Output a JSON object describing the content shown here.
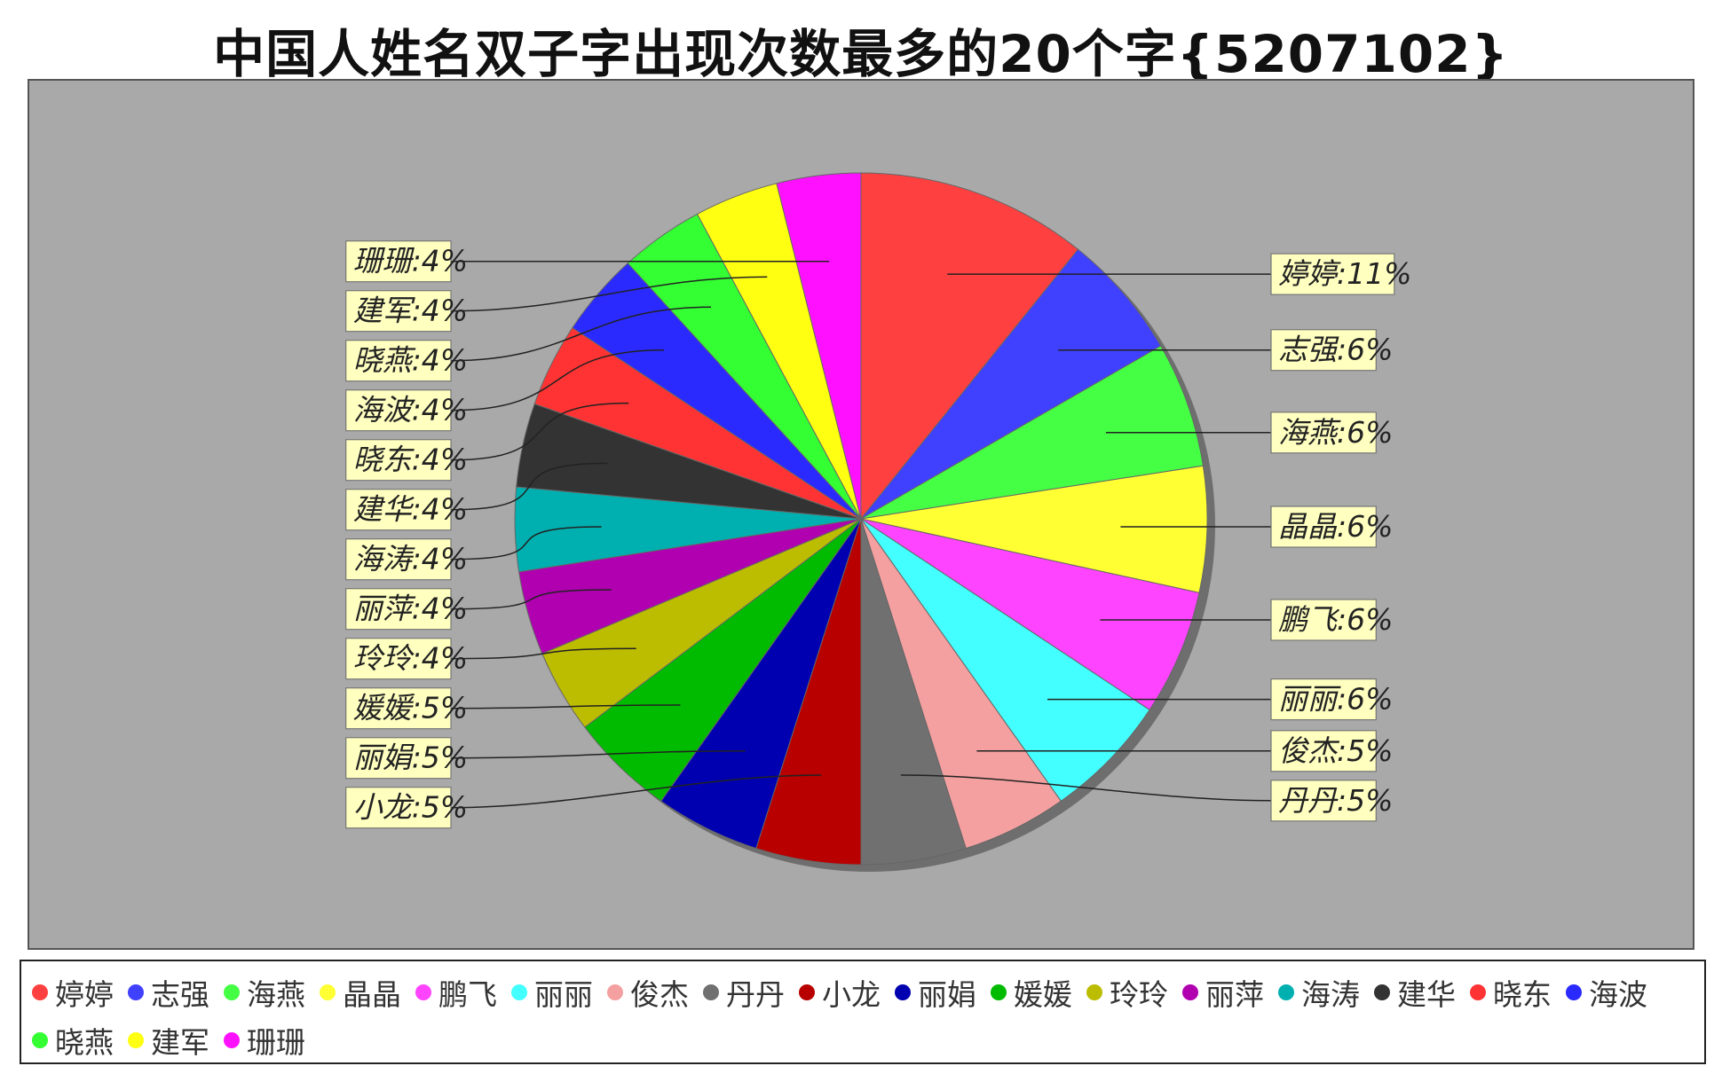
{
  "colors": {
    "plot_background": "#a9a9a9",
    "label_background": "#ffffc0",
    "leader_line": "#222222"
  },
  "chart_data": {
    "type": "pie",
    "title": "中国人姓名双子字出现次数最多的20个字{5207102}",
    "legend_position": "bottom",
    "slices": [
      {
        "name": "婷婷",
        "label": "婷婷:11%",
        "value": 11,
        "color": "#ff4040"
      },
      {
        "name": "志强",
        "label": "志强:6%",
        "value": 6,
        "color": "#4040ff"
      },
      {
        "name": "海燕",
        "label": "海燕:6%",
        "value": 6,
        "color": "#44ff44"
      },
      {
        "name": "晶晶",
        "label": "晶晶:6%",
        "value": 6,
        "color": "#ffff33"
      },
      {
        "name": "鹏飞",
        "label": "鹏飞:6%",
        "value": 6,
        "color": "#ff44ff"
      },
      {
        "name": "丽丽",
        "label": "丽丽:6%",
        "value": 6,
        "color": "#44ffff"
      },
      {
        "name": "俊杰",
        "label": "俊杰:5%",
        "value": 5,
        "color": "#f4a0a0"
      },
      {
        "name": "丹丹",
        "label": "丹丹:5%",
        "value": 5,
        "color": "#707070"
      },
      {
        "name": "小龙",
        "label": "小龙:5%",
        "value": 5,
        "color": "#b80000"
      },
      {
        "name": "丽娟",
        "label": "丽娟:5%",
        "value": 5,
        "color": "#0000b0"
      },
      {
        "name": "媛媛",
        "label": "媛媛:5%",
        "value": 5,
        "color": "#00bb00"
      },
      {
        "name": "玲玲",
        "label": "玲玲:4%",
        "value": 4,
        "color": "#bcbc00"
      },
      {
        "name": "丽萍",
        "label": "丽萍:4%",
        "value": 4,
        "color": "#b000b0"
      },
      {
        "name": "海涛",
        "label": "海涛:4%",
        "value": 4,
        "color": "#00b0b0"
      },
      {
        "name": "建华",
        "label": "建华:4%",
        "value": 4,
        "color": "#333333"
      },
      {
        "name": "晓东",
        "label": "晓东:4%",
        "value": 4,
        "color": "#ff3333"
      },
      {
        "name": "海波",
        "label": "海波:4%",
        "value": 4,
        "color": "#2a2aff"
      },
      {
        "name": "晓燕",
        "label": "晓燕:4%",
        "value": 4,
        "color": "#33ff33"
      },
      {
        "name": "建军",
        "label": "建军:4%",
        "value": 4,
        "color": "#ffff11"
      },
      {
        "name": "珊珊",
        "label": "珊珊:4%",
        "value": 4,
        "color": "#ff11ff"
      }
    ]
  }
}
